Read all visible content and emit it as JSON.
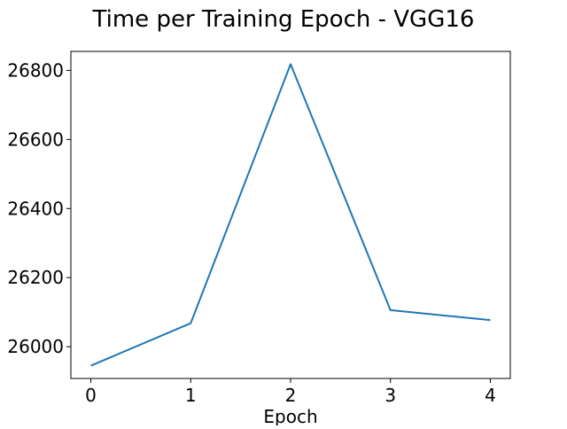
{
  "chart_data": {
    "type": "line",
    "title": "Time per Training Epoch - VGG16",
    "xlabel": "Epoch",
    "ylabel": "",
    "x": [
      0,
      1,
      2,
      3,
      4
    ],
    "series": [
      {
        "values": [
          25945,
          26068,
          26818,
          26106,
          26077
        ],
        "color": "#1f77b4"
      }
    ],
    "xticks": [
      "0",
      "1",
      "2",
      "3",
      "4"
    ],
    "yticks": [
      "26000",
      "26200",
      "26400",
      "26600",
      "26800"
    ],
    "xlim": [
      -0.2,
      4.2
    ],
    "ylim": [
      25908,
      26855
    ],
    "grid": false,
    "legend": "none"
  }
}
